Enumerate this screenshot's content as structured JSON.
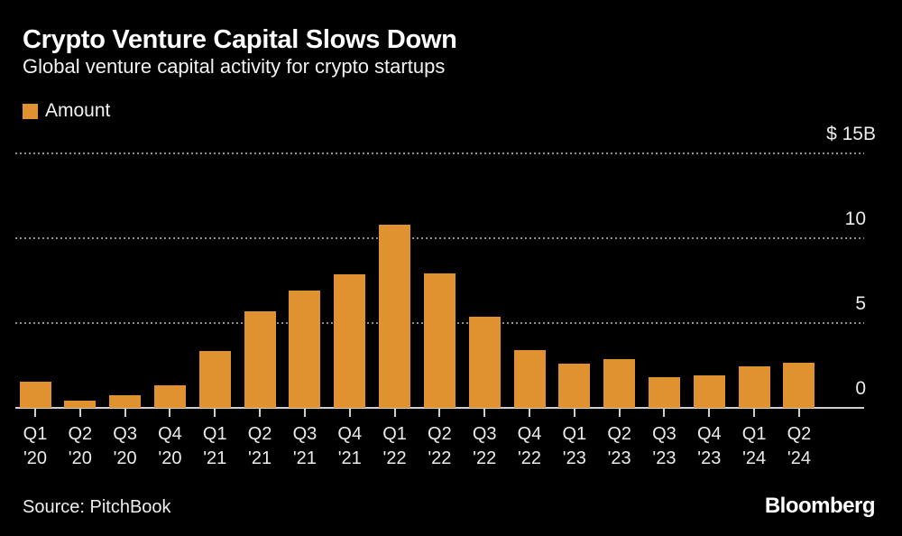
{
  "header": {
    "title": "Crypto Venture Capital Slows Down",
    "subtitle": "Global venture capital activity for crypto startups"
  },
  "legend": {
    "label": "Amount",
    "swatch_color": "#DF922F"
  },
  "chart_data": {
    "type": "bar",
    "title": "Crypto Venture Capital Slows Down",
    "subtitle": "Global venture capital activity for crypto startups",
    "unit": "billions of US dollars",
    "categories": [
      {
        "quarter": "Q1",
        "year": "'20"
      },
      {
        "quarter": "Q2",
        "year": "'20"
      },
      {
        "quarter": "Q3",
        "year": "'20"
      },
      {
        "quarter": "Q4",
        "year": "'20"
      },
      {
        "quarter": "Q1",
        "year": "'21"
      },
      {
        "quarter": "Q2",
        "year": "'21"
      },
      {
        "quarter": "Q3",
        "year": "'21"
      },
      {
        "quarter": "Q4",
        "year": "'21"
      },
      {
        "quarter": "Q1",
        "year": "'22"
      },
      {
        "quarter": "Q2",
        "year": "'22"
      },
      {
        "quarter": "Q3",
        "year": "'22"
      },
      {
        "quarter": "Q4",
        "year": "'22"
      },
      {
        "quarter": "Q1",
        "year": "'23"
      },
      {
        "quarter": "Q2",
        "year": "'23"
      },
      {
        "quarter": "Q3",
        "year": "'23"
      },
      {
        "quarter": "Q4",
        "year": "'23"
      },
      {
        "quarter": "Q1",
        "year": "'24"
      },
      {
        "quarter": "Q2",
        "year": "'24"
      }
    ],
    "series": [
      {
        "name": "Amount",
        "values": [
          1.55,
          0.4,
          0.75,
          1.35,
          3.35,
          5.7,
          6.9,
          7.85,
          10.8,
          7.9,
          5.35,
          3.4,
          2.6,
          2.85,
          1.8,
          1.9,
          2.45,
          2.65
        ]
      }
    ],
    "yticks": [
      {
        "value": 15,
        "label": "$ 15B"
      },
      {
        "value": 10,
        "label": "10"
      },
      {
        "value": 5,
        "label": "5"
      },
      {
        "value": 0,
        "label": "0"
      }
    ],
    "ylim": [
      0,
      15
    ],
    "xlabel": "",
    "ylabel": "",
    "grid": "horizontal-dotted",
    "legend_position": "top-left",
    "bar_color": "#DF922F",
    "background_color": "#000000",
    "grid_color": "#8d8d8d",
    "axis_color": "#cfcfcf"
  },
  "footer": {
    "source": "Source: PitchBook",
    "brand": "Bloomberg"
  }
}
